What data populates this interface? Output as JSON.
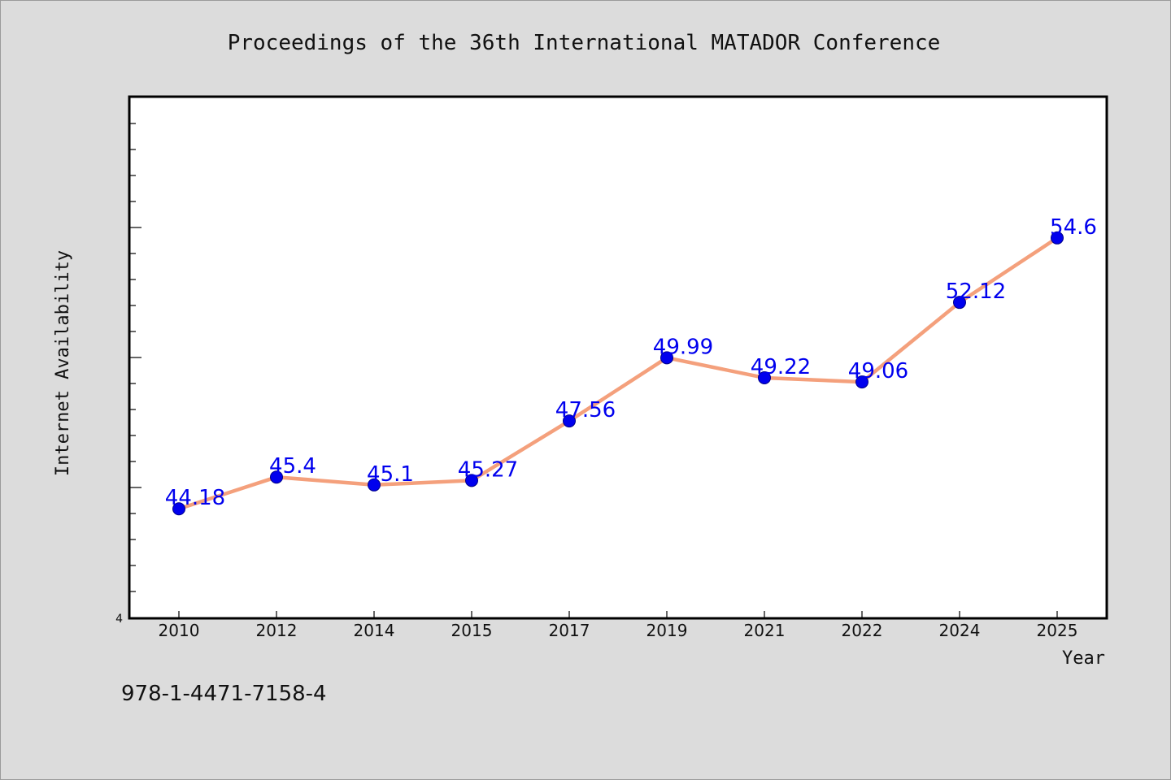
{
  "chart_data": {
    "type": "line",
    "title": "Proceedings of the 36th International MATADOR Conference",
    "xlabel": "Year",
    "ylabel": "Internet Availability",
    "categories": [
      "2010",
      "2012",
      "2014",
      "2015",
      "2017",
      "2019",
      "2021",
      "2022",
      "2024",
      "2025"
    ],
    "series": [
      {
        "values": [
          44.18,
          45.4,
          45.1,
          45.27,
          47.56,
          49.99,
          49.22,
          49.06,
          52.12,
          54.6
        ]
      }
    ],
    "data_labels": [
      "44.18",
      "45.4",
      "45.1",
      "45.27",
      "47.56",
      "49.99",
      "49.22",
      "49.06",
      "52.12",
      "54.6"
    ],
    "y_tick_labels": [
      "4"
    ],
    "ylim": [
      40,
      60
    ],
    "grid": false,
    "legend": "none",
    "line_color": "#f4a07c",
    "marker_color": "#0000ee",
    "label_color": "#0000ee",
    "footer": "978-1-4471-7158-4"
  }
}
